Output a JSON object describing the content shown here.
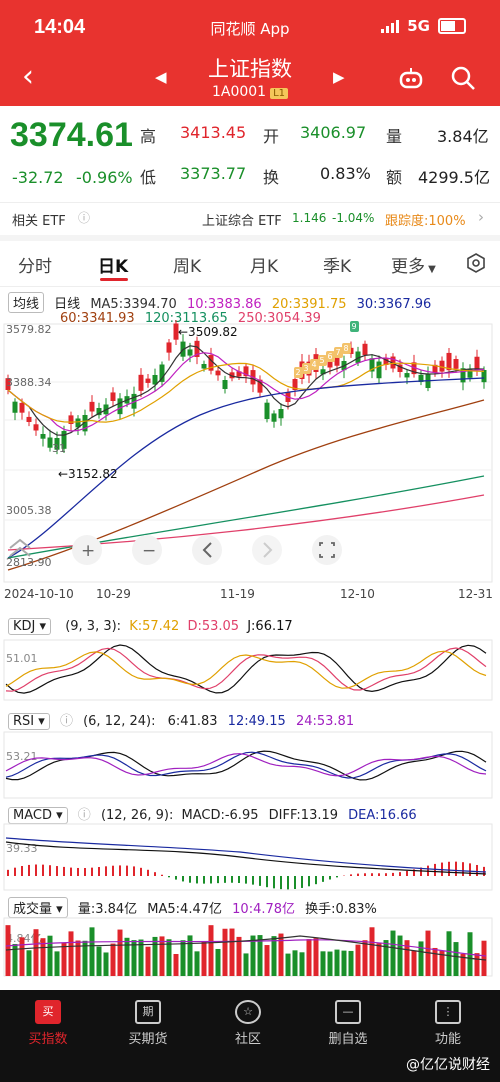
{
  "status_bar": {
    "time": "14:04",
    "app_name": "同花顺 App",
    "network": "5G"
  },
  "header": {
    "title": "上证指数",
    "code": "1A0001",
    "level_tag": "L1"
  },
  "quote": {
    "price": "3374.61",
    "change": "-32.72",
    "change_pct": "-0.96%",
    "high_label": "高",
    "high": "3413.45",
    "open_label": "开",
    "open": "3406.97",
    "vol_label": "量",
    "vol": "3.84亿",
    "low_label": "低",
    "low": "3373.77",
    "turnover_label": "换",
    "turnover": "0.83%",
    "amount_label": "额",
    "amount": "4299.5亿"
  },
  "etf": {
    "label": "相关 ETF",
    "name": "上证综合 ETF",
    "price": "1.146",
    "pct": "-1.04%",
    "track": "跟踪度:100%"
  },
  "tabs": [
    {
      "label": "分时"
    },
    {
      "label": "日K"
    },
    {
      "label": "周K"
    },
    {
      "label": "月K"
    },
    {
      "label": "季K"
    },
    {
      "label": "更多"
    }
  ],
  "kline": {
    "mode_label": "均线",
    "period_label": "日线",
    "ma5": "MA5:3394.70",
    "ma10": "10:3383.86",
    "ma20": "20:3391.75",
    "ma30": "30:3367.96",
    "ma60": "60:3341.93",
    "ma120": "120:3113.65",
    "ma250": "250:3054.39",
    "y_top": "3579.82",
    "y_mid": "3388.34",
    "y_low": "3005.38",
    "y_bottom": "2813.90",
    "y_label_4": "31",
    "max_note": "←3509.82",
    "min_note": "←3152.82",
    "dates": [
      "2024-10-10",
      "10-29",
      "11-19",
      "12-10",
      "12-31"
    ],
    "markers": [
      "2",
      "3",
      "4",
      "5",
      "6",
      "7",
      "8",
      "9"
    ]
  },
  "kdj": {
    "name": "KDJ",
    "params": "(9, 3, 3):",
    "k": "K:57.42",
    "d": "D:53.05",
    "j": "J:66.17",
    "axis": "51.01"
  },
  "rsi": {
    "name": "RSI",
    "params": "(6, 12, 24):",
    "r6": "6:41.83",
    "r12": "12:49.15",
    "r24": "24:53.81",
    "axis": "53.21"
  },
  "macd": {
    "name": "MACD",
    "params": "(12, 26, 9):",
    "macd": "MACD:-6.95",
    "diff": "DIFF:13.19",
    "dea": "DEA:16.66",
    "axis": "39.33"
  },
  "volume": {
    "name": "成交量",
    "vol": "量:3.84亿",
    "ma5": "MA5:4.47亿",
    "ma10": "10:4.78亿",
    "turn": "换手:0.83%",
    "axis": "4.84亿"
  },
  "bottom_nav": [
    {
      "label": "买指数",
      "icon": "买"
    },
    {
      "label": "买期货",
      "icon": "期"
    },
    {
      "label": "社区",
      "icon": "☆"
    },
    {
      "label": "删自选",
      "icon": "—"
    },
    {
      "label": "功能",
      "icon": "⋮"
    }
  ],
  "watermark": "@亿亿说财经",
  "colors": {
    "up": "#e0252c",
    "down": "#1a8f2a",
    "header": "#e8332f"
  }
}
